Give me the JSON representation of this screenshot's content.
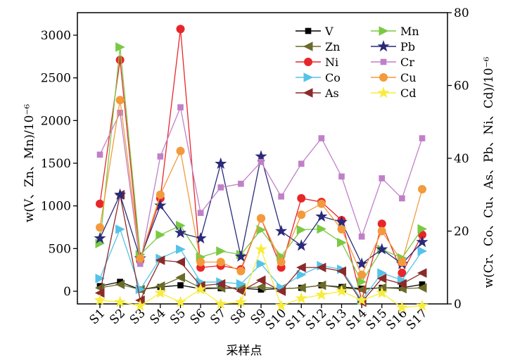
{
  "chart_data": {
    "type": "line",
    "categories": [
      "S1",
      "S2",
      "S3",
      "S4",
      "S5",
      "S6",
      "S7",
      "S8",
      "S9",
      "S10",
      "S11",
      "S12",
      "S13",
      "S14",
      "S15",
      "S16",
      "S17"
    ],
    "xlabel": "采样点",
    "ylabel_left": "w(V、Zn、Mn)/10⁻⁶",
    "ylabel_right": "w(Cr、Co、Cu、As、Pb、Ni、Cd)/10⁻⁶",
    "ylim_left": [
      0,
      3250
    ],
    "ylim_right": [
      0,
      80
    ],
    "yticks_left": [
      "0",
      "500",
      "1000",
      "1500",
      "2000",
      "2500",
      "3000"
    ],
    "yticks_right": [
      "0",
      "20",
      "40",
      "60",
      "80"
    ],
    "legend_position": "top-right",
    "series": [
      {
        "name": "V",
        "axis": "left",
        "color": "#000000",
        "marker": "square",
        "values": [
          60,
          110,
          20,
          50,
          70,
          30,
          35,
          35,
          20,
          30,
          40,
          70,
          50,
          30,
          40,
          40,
          80
        ]
      },
      {
        "name": "Zn",
        "axis": "left",
        "color": "#6b6b2a",
        "marker": "triangle-left",
        "values": [
          40,
          80,
          20,
          60,
          160,
          40,
          40,
          40,
          50,
          30,
          40,
          70,
          40,
          20,
          40,
          30,
          40
        ]
      },
      {
        "name": "Ni",
        "axis": "right",
        "color": "#e8262a",
        "marker": "circle",
        "values": [
          27.5,
          67,
          12,
          29,
          75.5,
          10,
          10.5,
          9.5,
          23.5,
          10,
          29,
          28,
          23,
          1,
          22,
          8.5,
          19
        ]
      },
      {
        "name": "Co",
        "axis": "right",
        "color": "#55c3e8",
        "marker": "triangle-right",
        "values": [
          7,
          20.5,
          4,
          12.5,
          15,
          6,
          6,
          5.5,
          11,
          4.5,
          8,
          10.5,
          9.5,
          1,
          8.5,
          6.5,
          14.5
        ]
      },
      {
        "name": "As",
        "axis": "right",
        "color": "#8b2a2a",
        "marker": "triangle-left",
        "values": [
          3,
          30,
          1,
          12,
          11.5,
          5,
          5.5,
          3.5,
          6.5,
          3.5,
          10,
          10,
          9,
          0.5,
          7,
          5.5,
          8.5
        ]
      },
      {
        "name": "Mn",
        "axis": "left",
        "color": "#7ac943",
        "marker": "triangle-right",
        "values": [
          560,
          2860,
          430,
          660,
          770,
          400,
          470,
          430,
          720,
          410,
          720,
          730,
          570,
          110,
          490,
          390,
          730
        ]
      },
      {
        "name": "Pb",
        "axis": "right",
        "color": "#2a2a7a",
        "marker": "star",
        "values": [
          18,
          30,
          12.5,
          27,
          19.5,
          18,
          38.5,
          13,
          40.5,
          20,
          16,
          24,
          22.5,
          11,
          15,
          11,
          17
        ]
      },
      {
        "name": "Cr",
        "axis": "right",
        "color": "#c080c8",
        "marker": "square",
        "values": [
          41,
          52.5,
          11,
          40.5,
          54,
          25,
          32,
          33,
          39,
          29.5,
          38.5,
          45.5,
          35,
          18.5,
          34.5,
          29,
          45.5
        ]
      },
      {
        "name": "Cu",
        "axis": "right",
        "color": "#f39a3c",
        "marker": "circle",
        "values": [
          21,
          56,
          12.5,
          30,
          42,
          11.5,
          11.5,
          9,
          23.5,
          11.5,
          24.5,
          27.5,
          20.5,
          8,
          20,
          11.5,
          31.5
        ]
      },
      {
        "name": "Cd",
        "axis": "right",
        "color": "#f7ec3c",
        "marker": "star",
        "values": [
          1,
          0.5,
          -0.5,
          3,
          0.5,
          4,
          0,
          0.5,
          15,
          -0.5,
          1.5,
          2.5,
          3.5,
          1,
          3,
          -1,
          -0.5
        ]
      }
    ]
  }
}
